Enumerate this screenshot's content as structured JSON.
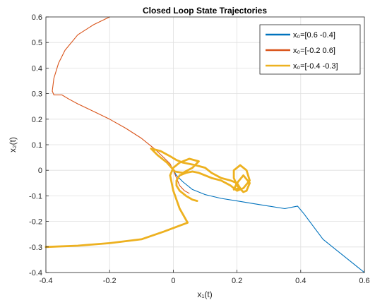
{
  "chart_data": {
    "type": "line",
    "title": "Closed Loop State Trajectories",
    "xlabel": "x₁(t)",
    "ylabel": "x₂(t)",
    "xlim": [
      -0.4,
      0.6
    ],
    "ylim": [
      -0.4,
      0.6
    ],
    "xticks": [
      "-0.4",
      "-0.2",
      "0",
      "0.2",
      "0.4",
      "0.6"
    ],
    "yticks": [
      "-0.4",
      "-0.3",
      "-0.2",
      "-0.1",
      "0",
      "0.1",
      "0.2",
      "0.3",
      "0.4",
      "0.5",
      "0.6"
    ],
    "grid": true,
    "legend_position": "top-right",
    "series": [
      {
        "name": "x₀=[0.6 -0.4]",
        "color": "#0072BD",
        "x": [
          0.6,
          0.55,
          0.5,
          0.47,
          0.44,
          0.41,
          0.39,
          0.37,
          0.35,
          0.3,
          0.25,
          0.2,
          0.15,
          0.1,
          0.06,
          0.03,
          0.01,
          0.0
        ],
        "y": [
          -0.4,
          -0.35,
          -0.3,
          -0.27,
          -0.22,
          -0.17,
          -0.14,
          -0.145,
          -0.15,
          -0.14,
          -0.13,
          -0.12,
          -0.11,
          -0.095,
          -0.075,
          -0.045,
          -0.02,
          0.0
        ]
      },
      {
        "name": "x₀=[-0.2 0.6]",
        "color": "#D95319",
        "x": [
          -0.2,
          -0.25,
          -0.3,
          -0.34,
          -0.36,
          -0.375,
          -0.38,
          -0.375,
          -0.35,
          -0.33,
          -0.3,
          -0.25,
          -0.2,
          -0.15,
          -0.1,
          -0.06,
          -0.03,
          -0.01,
          0.0,
          0.01,
          0.02,
          0.035,
          0.05
        ],
        "y": [
          0.6,
          0.57,
          0.53,
          0.47,
          0.42,
          0.36,
          0.31,
          0.295,
          0.295,
          0.28,
          0.26,
          0.23,
          0.2,
          0.165,
          0.125,
          0.085,
          0.05,
          0.025,
          0.0,
          -0.03,
          -0.06,
          -0.08,
          -0.09
        ]
      },
      {
        "name": "x₀=[-0.4 -0.3]",
        "color": "#EDB120",
        "x": [
          -0.4,
          -0.3,
          -0.2,
          -0.1,
          -0.03,
          0.045,
          0.02,
          0.0,
          -0.01,
          0.0,
          0.02,
          0.05,
          0.08,
          0.06,
          0.03,
          0.005,
          -0.02,
          -0.05,
          -0.07,
          -0.04,
          -0.01,
          0.01,
          0.03,
          0.05,
          0.07,
          0.1,
          0.12,
          0.15,
          0.18,
          0.2,
          0.21,
          0.19,
          0.2,
          0.22,
          0.24,
          0.23,
          0.22,
          0.2,
          0.19,
          0.19,
          0.21,
          0.23,
          0.24,
          0.22,
          0.2,
          0.18,
          0.15,
          0.12,
          0.1,
          0.08,
          0.06,
          0.04,
          0.02,
          0.01,
          0.01,
          0.02,
          0.04,
          0.06,
          0.075
        ],
        "y": [
          -0.3,
          -0.295,
          -0.285,
          -0.27,
          -0.24,
          -0.205,
          -0.15,
          -0.08,
          -0.02,
          0.01,
          0.03,
          0.045,
          0.035,
          0.01,
          -0.01,
          -0.005,
          0.03,
          0.06,
          0.085,
          0.075,
          0.055,
          0.04,
          0.03,
          0.025,
          0.02,
          0.01,
          -0.01,
          -0.03,
          -0.04,
          -0.05,
          -0.07,
          -0.075,
          -0.05,
          -0.02,
          -0.05,
          -0.08,
          -0.085,
          -0.06,
          -0.03,
          -0.0,
          0.02,
          0.0,
          -0.04,
          -0.07,
          -0.08,
          -0.06,
          -0.04,
          -0.03,
          -0.02,
          -0.01,
          -0.005,
          -0.01,
          -0.02,
          -0.04,
          -0.06,
          -0.08,
          -0.1,
          -0.115,
          -0.12
        ]
      }
    ]
  }
}
